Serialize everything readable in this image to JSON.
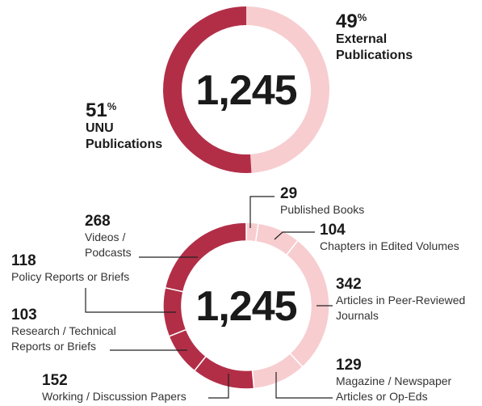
{
  "chart_data": [
    {
      "type": "donut",
      "center_label": "1,245",
      "unit": "%",
      "categories": [
        "External\nPublications",
        "UNU\nPublications"
      ],
      "values": [
        49,
        51
      ],
      "colors": [
        "#f7cdd0",
        "#b22e47"
      ]
    },
    {
      "type": "donut",
      "center_label": "1,245",
      "categories": [
        "Published Books",
        "Chapters in Edited Volumes",
        "Articles in Peer-Reviewed\nJournals",
        "Magazine / Newspaper\nArticles or Op-Eds",
        "Working / Discussion Papers",
        "Research / Technical\nReports or Briefs",
        "Policy Reports or Briefs",
        "Videos /\nPodcasts"
      ],
      "values": [
        29,
        104,
        342,
        129,
        152,
        103,
        118,
        268
      ],
      "colors": [
        "#f7cdd0",
        "#f7cdd0",
        "#f7cdd0",
        "#f7cdd0",
        "#b22e47",
        "#b22e47",
        "#b22e47",
        "#b22e47"
      ]
    }
  ]
}
